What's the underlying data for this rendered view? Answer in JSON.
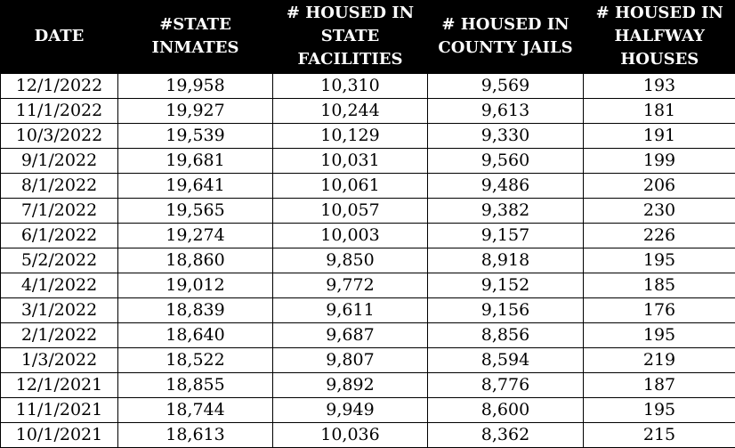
{
  "table": {
    "header": [
      [
        "DATE"
      ],
      [
        "#STATE",
        "INMATES"
      ],
      [
        "# HOUSED IN",
        "STATE",
        "FACILITIES"
      ],
      [
        "# HOUSED IN",
        "COUNTY JAILS"
      ],
      [
        "# HOUSED IN",
        "HALFWAY",
        "HOUSES"
      ]
    ],
    "rows": [
      [
        "12/1/2022",
        "19,958",
        "10,310",
        "9,569",
        "193"
      ],
      [
        "11/1/2022",
        "19,927",
        "10,244",
        "9,613",
        "181"
      ],
      [
        "10/3/2022",
        "19,539",
        "10,129",
        "9,330",
        "191"
      ],
      [
        "9/1/2022",
        "19,681",
        "10,031",
        "9,560",
        "199"
      ],
      [
        "8/1/2022",
        "19,641",
        "10,061",
        "9,486",
        "206"
      ],
      [
        "7/1/2022",
        "19,565",
        "10,057",
        "9,382",
        "230"
      ],
      [
        "6/1/2022",
        "19,274",
        "10,003",
        "9,157",
        "226"
      ],
      [
        "5/2/2022",
        "18,860",
        "9,850",
        "8,918",
        "195"
      ],
      [
        "4/1/2022",
        "19,012",
        "9,772",
        "9,152",
        "185"
      ],
      [
        "3/1/2022",
        "18,839",
        "9,611",
        "9,156",
        "176"
      ],
      [
        "2/1/2022",
        "18,640",
        "9,687",
        "8,856",
        "195"
      ],
      [
        "1/3/2022",
        "18,522",
        "9,807",
        "8,594",
        "219"
      ],
      [
        "12/1/2021",
        "18,855",
        "9,892",
        "8,776",
        "187"
      ],
      [
        "11/1/2021",
        "18,744",
        "9,949",
        "8,600",
        "195"
      ],
      [
        "10/1/2021",
        "18,613",
        "10,036",
        "8,362",
        "215"
      ]
    ]
  }
}
